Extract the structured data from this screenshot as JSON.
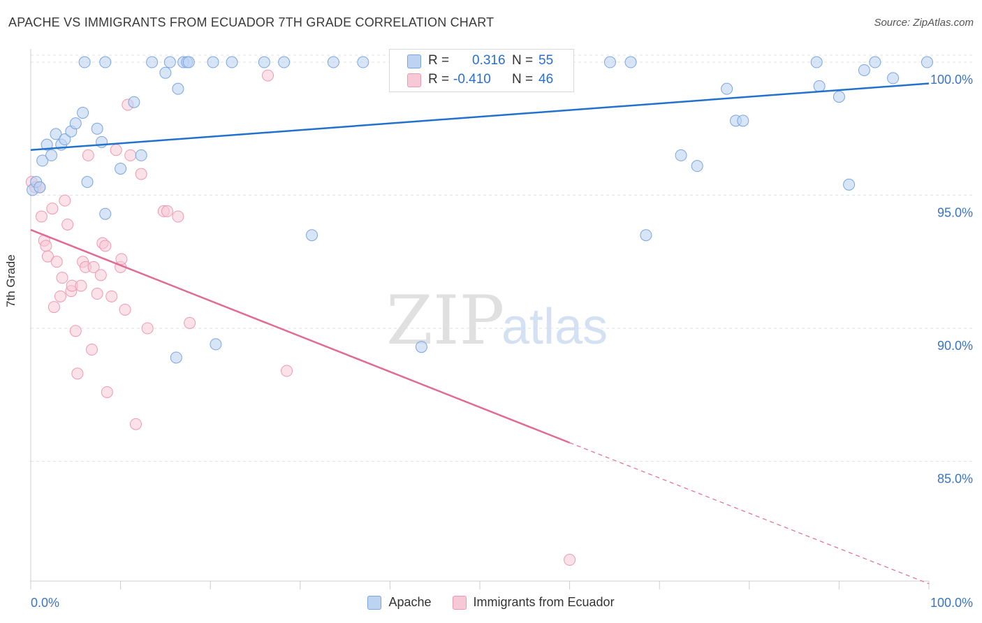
{
  "title": "APACHE VS IMMIGRANTS FROM ECUADOR 7TH GRADE CORRELATION CHART",
  "source": "Source: ZipAtlas.com",
  "watermark": {
    "zip": "ZIP",
    "atlas": "atlas"
  },
  "colors": {
    "apache_fill": "#bcd3f2",
    "apache_stroke": "#7aa5e0",
    "apache_line": "#2272cc",
    "ecuador_fill": "#f7c8d6",
    "ecuador_stroke": "#ee99b3",
    "ecuador_line": "#e06b94",
    "tick_label": "#3b74c6",
    "grid": "#e2e2e2"
  },
  "stats": {
    "apache": {
      "r_label": "R =",
      "r_value": "0.316",
      "n_label": "N =",
      "n_value": "55"
    },
    "ecuador": {
      "r_label": "R =",
      "r_value": "-0.410",
      "n_label": "N =",
      "n_value": "46"
    }
  },
  "chart_data": {
    "type": "scatter",
    "title": "APACHE VS IMMIGRANTS FROM ECUADOR 7TH GRADE CORRELATION CHART",
    "xlabel": "",
    "ylabel": "7th Grade",
    "xlim": [
      0,
      100
    ],
    "ylim": [
      80.5,
      100.5
    ],
    "x_tick_labels": [
      "0.0%",
      "100.0%"
    ],
    "y_ticks": [
      {
        "value": 100,
        "label": "100.0%"
      },
      {
        "value": 95,
        "label": "95.0%"
      },
      {
        "value": 90,
        "label": "90.0%"
      },
      {
        "value": 85,
        "label": "85.0%"
      }
    ],
    "grid": true,
    "legend_position": "bottom-center",
    "series": [
      {
        "name": "Apache",
        "trend": {
          "x": [
            0,
            100
          ],
          "y": [
            96.7,
            99.2
          ]
        },
        "points": [
          [
            0.2,
            95.2
          ],
          [
            0.6,
            95.5
          ],
          [
            1.0,
            95.3
          ],
          [
            1.3,
            96.3
          ],
          [
            1.8,
            96.9
          ],
          [
            2.3,
            96.5
          ],
          [
            2.8,
            97.3
          ],
          [
            3.4,
            96.9
          ],
          [
            3.8,
            97.1
          ],
          [
            4.5,
            97.4
          ],
          [
            5.0,
            97.7
          ],
          [
            5.8,
            98.1
          ],
          [
            6.3,
            95.5
          ],
          [
            7.4,
            97.5
          ],
          [
            7.9,
            97.0
          ],
          [
            8.3,
            94.3
          ],
          [
            6.0,
            100.0
          ],
          [
            8.3,
            100.0
          ],
          [
            10.0,
            96.0
          ],
          [
            11.5,
            98.5
          ],
          [
            12.3,
            96.5
          ],
          [
            13.5,
            100.0
          ],
          [
            15.0,
            99.6
          ],
          [
            15.5,
            100.0
          ],
          [
            16.2,
            88.9
          ],
          [
            16.4,
            99.0
          ],
          [
            17.0,
            100.0
          ],
          [
            17.4,
            100.0
          ],
          [
            17.6,
            100.0
          ],
          [
            20.3,
            100.0
          ],
          [
            20.6,
            89.4
          ],
          [
            22.4,
            100.0
          ],
          [
            26.0,
            100.0
          ],
          [
            28.2,
            100.0
          ],
          [
            31.3,
            93.5
          ],
          [
            33.7,
            100.0
          ],
          [
            37.0,
            100.0
          ],
          [
            43.5,
            89.3
          ],
          [
            57.3,
            100.0
          ],
          [
            64.5,
            100.0
          ],
          [
            66.8,
            100.0
          ],
          [
            68.5,
            93.5
          ],
          [
            72.4,
            96.5
          ],
          [
            74.2,
            96.1
          ],
          [
            77.5,
            99.0
          ],
          [
            78.5,
            97.8
          ],
          [
            79.3,
            97.8
          ],
          [
            87.5,
            100.0
          ],
          [
            87.8,
            99.1
          ],
          [
            90.0,
            98.7
          ],
          [
            91.1,
            95.4
          ],
          [
            92.8,
            99.7
          ],
          [
            94.0,
            100.0
          ],
          [
            96.0,
            99.4
          ],
          [
            99.8,
            100.0
          ]
        ]
      },
      {
        "name": "Immigrants from Ecuador",
        "trend": {
          "x": [
            0,
            60
          ],
          "y": [
            93.7,
            85.7
          ],
          "dash_to": {
            "x": 100,
            "y": 80.4
          }
        },
        "points": [
          [
            0.1,
            95.5
          ],
          [
            0.5,
            95.3
          ],
          [
            1.2,
            94.2
          ],
          [
            1.5,
            93.3
          ],
          [
            1.7,
            93.1
          ],
          [
            1.9,
            92.7
          ],
          [
            2.4,
            94.5
          ],
          [
            2.6,
            90.8
          ],
          [
            2.9,
            92.5
          ],
          [
            3.3,
            91.2
          ],
          [
            3.5,
            91.9
          ],
          [
            3.8,
            94.8
          ],
          [
            4.1,
            93.9
          ],
          [
            4.5,
            91.4
          ],
          [
            4.6,
            91.6
          ],
          [
            5.0,
            89.9
          ],
          [
            5.2,
            88.3
          ],
          [
            5.6,
            91.6
          ],
          [
            5.8,
            92.5
          ],
          [
            6.1,
            92.3
          ],
          [
            6.4,
            96.5
          ],
          [
            6.8,
            89.2
          ],
          [
            7.0,
            92.3
          ],
          [
            7.4,
            91.3
          ],
          [
            7.8,
            92.0
          ],
          [
            8.0,
            93.2
          ],
          [
            8.3,
            93.1
          ],
          [
            8.5,
            87.6
          ],
          [
            9.0,
            91.2
          ],
          [
            9.5,
            96.7
          ],
          [
            10.0,
            92.3
          ],
          [
            10.1,
            92.6
          ],
          [
            10.5,
            90.7
          ],
          [
            10.8,
            98.4
          ],
          [
            11.1,
            96.5
          ],
          [
            11.7,
            86.4
          ],
          [
            12.3,
            95.8
          ],
          [
            13.0,
            90.0
          ],
          [
            14.8,
            94.4
          ],
          [
            15.2,
            94.4
          ],
          [
            16.4,
            94.2
          ],
          [
            17.7,
            90.2
          ],
          [
            26.4,
            99.5
          ],
          [
            28.5,
            88.4
          ],
          [
            60.0,
            81.3
          ],
          [
            1.0,
            95.3
          ]
        ]
      }
    ]
  }
}
